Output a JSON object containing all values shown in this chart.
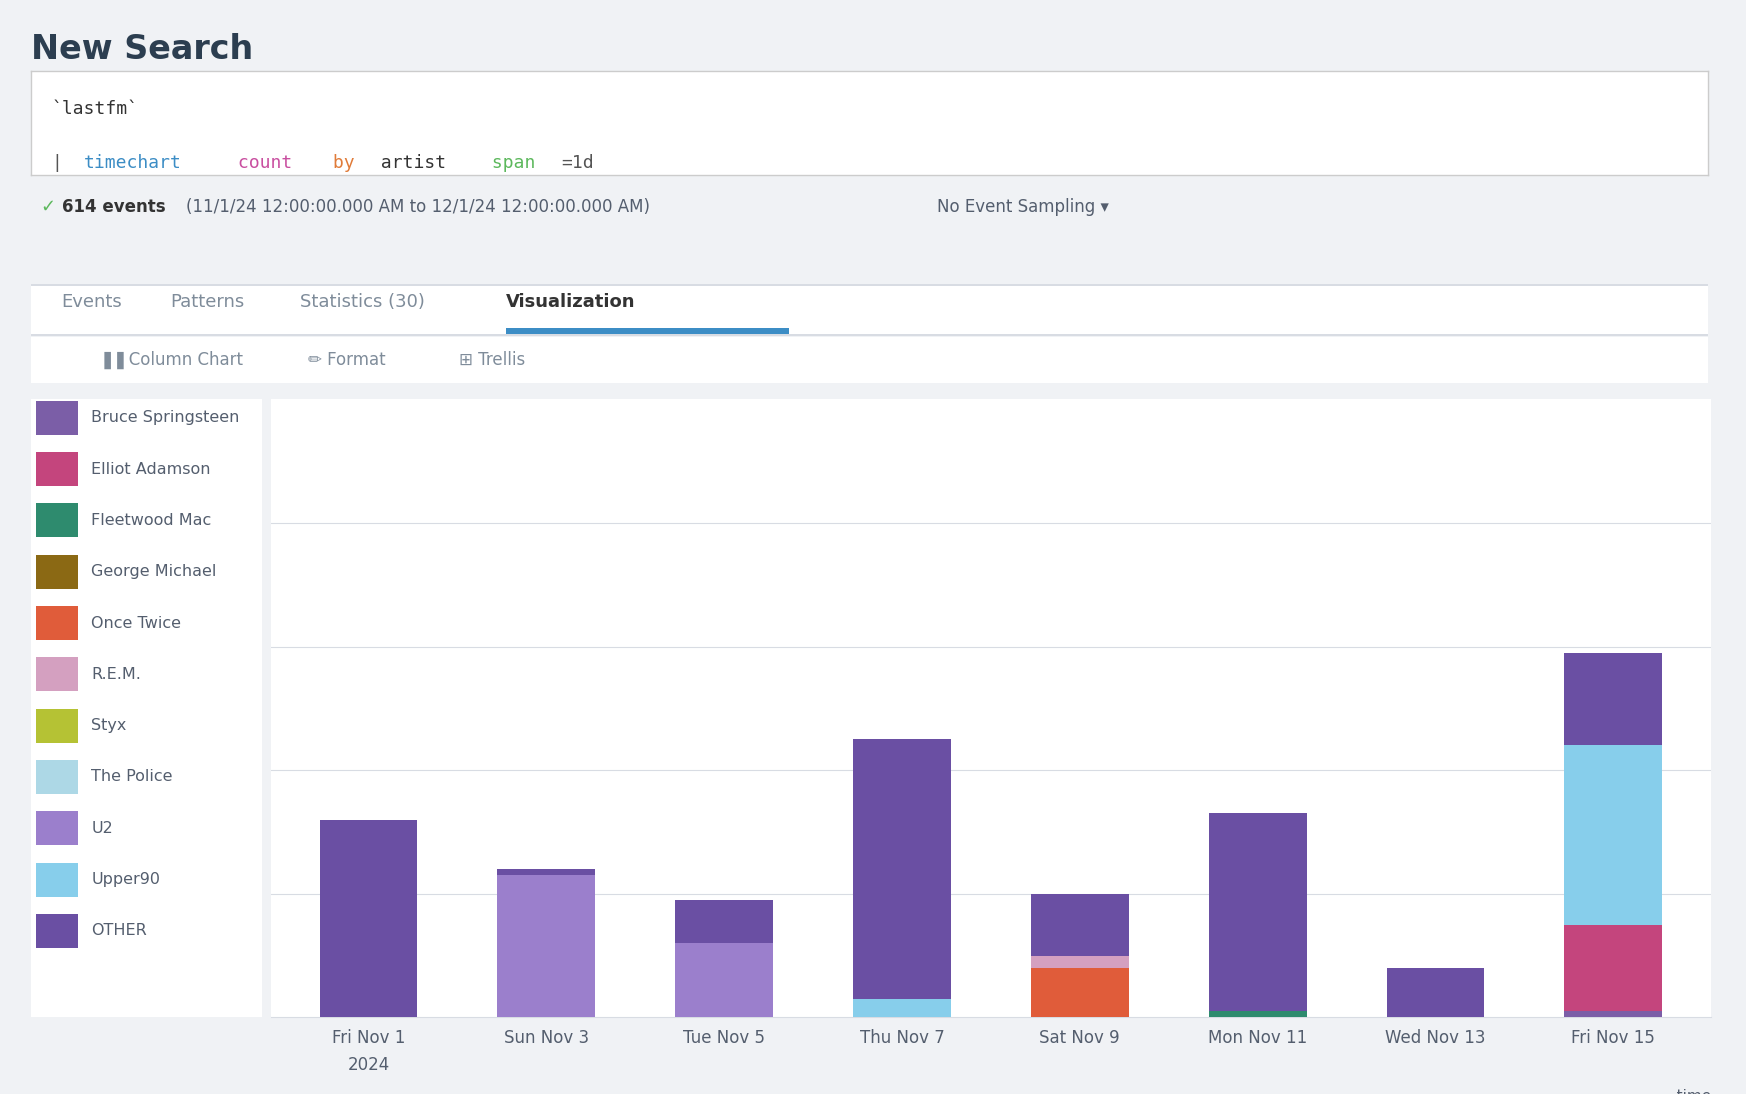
{
  "title": "New Search",
  "background_color": "#f0f2f5",
  "plot_bg_color": "#ffffff",
  "categories": [
    "Fri Nov 1",
    "Sun Nov 3",
    "Tue Nov 5",
    "Thu Nov 7",
    "Sat Nov 9",
    "Mon Nov 11",
    "Wed Nov 13",
    "Fri Nov 15"
  ],
  "artists": [
    "Bruce Springsteen",
    "Elliot Adamson",
    "Fleetwood Mac",
    "George Michael",
    "Once Twice",
    "R.E.M.",
    "Styx",
    "The Police",
    "U2",
    "Upper90",
    "OTHER"
  ],
  "colors": {
    "Bruce Springsteen": "#7b5ea7",
    "Elliot Adamson": "#c4457d",
    "Fleetwood Mac": "#2e8b6e",
    "George Michael": "#8b6914",
    "Once Twice": "#e05c3a",
    "R.E.M.": "#d4a0c0",
    "Styx": "#b5c234",
    "The Police": "#add8e6",
    "U2": "#9b7fcc",
    "Upper90": "#87ceeb",
    "OTHER": "#6a4fa3"
  },
  "data": {
    "Bruce Springsteen": [
      0,
      0,
      0,
      0,
      0,
      0,
      0,
      1
    ],
    "Elliot Adamson": [
      0,
      0,
      0,
      0,
      0,
      0,
      0,
      14
    ],
    "Fleetwood Mac": [
      0,
      0,
      0,
      0,
      0,
      1,
      0,
      0
    ],
    "George Michael": [
      0,
      0,
      0,
      0,
      0,
      0,
      0,
      0
    ],
    "Once Twice": [
      0,
      0,
      0,
      0,
      8,
      0,
      0,
      0
    ],
    "R.E.M.": [
      0,
      0,
      0,
      0,
      2,
      0,
      0,
      0
    ],
    "Styx": [
      0,
      0,
      0,
      0,
      0,
      0,
      0,
      0
    ],
    "The Police": [
      0,
      0,
      0,
      0,
      0,
      0,
      0,
      0
    ],
    "U2": [
      0,
      23,
      12,
      0,
      0,
      0,
      0,
      0
    ],
    "Upper90": [
      0,
      0,
      0,
      3,
      0,
      0,
      0,
      29
    ],
    "OTHER": [
      32,
      1,
      7,
      42,
      10,
      32,
      8,
      15
    ]
  },
  "ylim": [
    0,
    100
  ],
  "yticks": [
    20,
    40,
    60,
    80
  ],
  "grid_color": "#d8dce3",
  "axis_color": "#545e6e",
  "legend_fontsize": 11.5,
  "tick_fontsize": 12,
  "search_line1_color": "#333333",
  "search_timechart_color": "#3c8dc5",
  "search_count_color": "#c94fa0",
  "search_by_color": "#e07b39",
  "search_artist_color": "#333333",
  "search_span_color": "#5cb85c",
  "events_check_color": "#5cb85c",
  "events_count_color": "#333333",
  "events_text_color": "#545e6e",
  "tab_active_color": "#333333",
  "tab_inactive_color": "#7f8c9a",
  "tab_underline_color": "#3c8dc5",
  "toolbar_color": "#7f8c9a"
}
